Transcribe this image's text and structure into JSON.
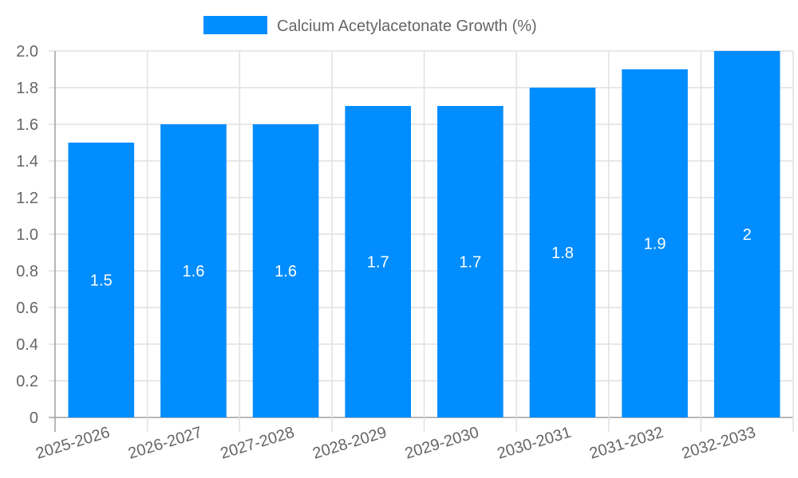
{
  "chart_data": {
    "type": "bar",
    "title": "",
    "xlabel": "",
    "ylabel": "",
    "categories": [
      "2025-2026",
      "2026-2027",
      "2027-2028",
      "2028-2029",
      "2029-2030",
      "2030-2031",
      "2031-2032",
      "2032-2033"
    ],
    "series": [
      {
        "name": "Calcium Acetylacetonate Growth (%)",
        "values": [
          1.5,
          1.6,
          1.6,
          1.7,
          1.7,
          1.8,
          1.9,
          2
        ],
        "color": "#028dfe"
      }
    ],
    "data_labels": [
      "1.5",
      "1.6",
      "1.6",
      "1.7",
      "1.7",
      "1.8",
      "1.9",
      "2"
    ],
    "ylim": [
      0,
      2.0
    ],
    "yticks": [
      "0",
      "0.2",
      "0.4",
      "0.6",
      "0.8",
      "1.0",
      "1.2",
      "1.4",
      "1.6",
      "1.8",
      "2.0"
    ],
    "grid": true,
    "legend_position": "top"
  },
  "legend": {
    "label": "Calcium Acetylacetonate Growth (%)",
    "color": "#028dfe"
  },
  "colors": {
    "bar": "#028dfe",
    "grid": "#e0e0e0",
    "axis": "#a0a0a0",
    "text": "#666666"
  }
}
